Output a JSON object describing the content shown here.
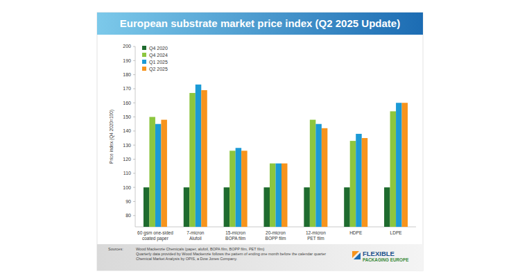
{
  "chart_data": {
    "type": "bar",
    "title": "European substrate market price index (Q2 2025 Update)",
    "y_label": "Price index (Q4 2020=100)",
    "categories": [
      "60 gsm one-sided\ncoated paper",
      "7-micron\nAlufoil",
      "15-micron\nBOPA film",
      "20-micron\nBOPP film",
      "12-micron\nPET film",
      "HDPE",
      "LDPE"
    ],
    "series": [
      {
        "name": "Q4 2020",
        "color": "#1e6b2e",
        "values": [
          100,
          100,
          100,
          100,
          100,
          100,
          100
        ]
      },
      {
        "name": "Q4 2024",
        "color": "#8dc63f",
        "values": [
          150,
          167,
          126,
          117,
          148,
          133,
          154
        ]
      },
      {
        "name": "Q1 2025",
        "color": "#1b9ad6",
        "values": [
          145,
          173,
          128,
          117,
          145,
          138,
          160
        ]
      },
      {
        "name": "Q2 2025",
        "color": "#f7941d",
        "values": [
          148,
          169,
          126,
          117,
          142,
          135,
          160
        ]
      }
    ],
    "ylim": [
      72,
      200
    ],
    "yticks": [
      80,
      90,
      100,
      110,
      120,
      130,
      140,
      150,
      160,
      170,
      180,
      190,
      200
    ],
    "grid": false,
    "legend": "upper left"
  },
  "footer": {
    "label": "Sources:",
    "lines": [
      "Wood Mackenzie Chemicals (paper, alufoil, BOPA film, BOPP film, PET film)",
      "Quarterly data provided by Wood Mackenzie follows the pattern of ending one month before the calendar quarter",
      "Chemical Market Analysis by OPIS, a Dow Jones Company."
    ],
    "logo": [
      "FLEXIBLE",
      "PACKAGING EUROPE"
    ]
  }
}
